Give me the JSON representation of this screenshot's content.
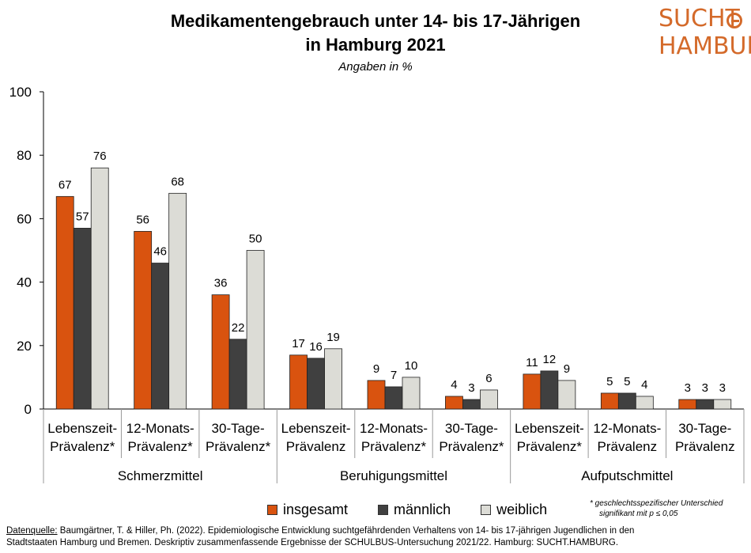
{
  "header": {
    "title_line1": "Medikamentengebrauch unter 14- bis 17-Jährigen",
    "title_line2": "in Hamburg 2021",
    "subtitle": "Angaben in %"
  },
  "logo": {
    "line1": "SUCHT",
    "line2": "HAMBURG"
  },
  "colors": {
    "insgesamt": "#d9530f",
    "maennlich": "#404040",
    "weiblich": "#dcdcd6"
  },
  "chart_data": {
    "type": "bar",
    "ylim": [
      0,
      100
    ],
    "yticks": [
      0,
      20,
      40,
      60,
      80,
      100
    ],
    "grid": false,
    "legend_position": "bottom",
    "groups": [
      {
        "name": "Schmerzmittel",
        "categories": [
          [
            "Lebenszeit-",
            "Prävalenz*"
          ],
          [
            "12-Monats-",
            "Prävalenz*"
          ],
          [
            "30-Tage-",
            "Prävalenz*"
          ]
        ]
      },
      {
        "name": "Beruhigungsmittel",
        "categories": [
          [
            "Lebenszeit-",
            "Prävalenz"
          ],
          [
            "12-Monats-",
            "Prävalenz*"
          ],
          [
            "30-Tage-",
            "Prävalenz*"
          ]
        ]
      },
      {
        "name": "Aufputschmittel",
        "categories": [
          [
            "Lebenszeit-",
            "Prävalenz*"
          ],
          [
            "12-Monats-",
            "Prävalenz"
          ],
          [
            "30-Tage-",
            "Prävalenz"
          ]
        ]
      }
    ],
    "series": [
      {
        "name": "insgesamt",
        "values": [
          67,
          56,
          36,
          17,
          9,
          4,
          11,
          5,
          3
        ],
        "labels": [
          "67",
          "56",
          "36",
          "17",
          "9",
          "4",
          "11",
          "5",
          "3"
        ]
      },
      {
        "name": "männlich",
        "values": [
          57,
          46,
          22,
          16,
          7,
          3,
          12,
          5,
          3
        ],
        "labels": [
          "57",
          "46",
          "22",
          "16",
          "7",
          "3",
          "12",
          "5",
          "3"
        ]
      },
      {
        "name": "weiblich",
        "values": [
          76,
          68,
          50,
          19,
          10,
          6,
          9,
          4,
          3
        ],
        "labels": [
          "76",
          "68",
          "50",
          "19",
          "10",
          "6",
          "9",
          "4",
          "3"
        ]
      }
    ]
  },
  "footnote": {
    "line1": "* geschlechtsspezifischer Unterschied",
    "line2": "signifikant mit p ≤ 0,05"
  },
  "source": {
    "label": "Datenquelle:",
    "text1": " Baumgärtner, T. & Hiller, Ph. (2022). Epidemiologische Entwicklung suchtgefährdenden Verhaltens von 14- bis 17-jährigen Jugendlichen in den",
    "text2": "Stadtstaaten Hamburg und Bremen. Deskriptiv zusammenfassende Ergebnisse der SCHULBUS-Untersuchung 2021/22. Hamburg: SUCHT.HAMBURG."
  }
}
